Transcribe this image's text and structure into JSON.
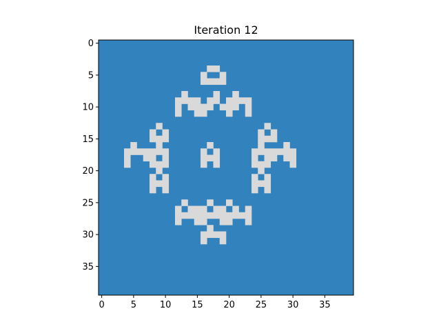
{
  "chart_data": {
    "type": "heatmap",
    "title": "Iteration 12",
    "grid_size": 40,
    "colors": {
      "dead": "#3182bd",
      "alive": "#d9d9d9"
    },
    "xlim": [
      -0.5,
      39.5
    ],
    "ylim": [
      39.5,
      -0.5
    ],
    "xticks": [
      0,
      5,
      10,
      15,
      20,
      25,
      30,
      35
    ],
    "yticks": [
      0,
      5,
      10,
      15,
      20,
      25,
      30,
      35
    ],
    "grid": false,
    "alive_cells": [
      [
        4,
        17
      ],
      [
        4,
        18
      ],
      [
        5,
        16
      ],
      [
        5,
        19
      ],
      [
        6,
        16
      ],
      [
        6,
        17
      ],
      [
        6,
        18
      ],
      [
        6,
        19
      ],
      [
        8,
        13
      ],
      [
        8,
        18
      ],
      [
        8,
        21
      ],
      [
        9,
        12
      ],
      [
        9,
        13
      ],
      [
        9,
        14
      ],
      [
        9,
        15
      ],
      [
        9,
        17
      ],
      [
        9,
        18
      ],
      [
        9,
        20
      ],
      [
        9,
        21
      ],
      [
        9,
        22
      ],
      [
        9,
        23
      ],
      [
        10,
        12
      ],
      [
        10,
        14
      ],
      [
        10,
        15
      ],
      [
        10,
        16
      ],
      [
        10,
        17
      ],
      [
        10,
        19
      ],
      [
        10,
        20
      ],
      [
        10,
        21
      ],
      [
        10,
        23
      ],
      [
        11,
        12
      ],
      [
        11,
        15
      ],
      [
        11,
        16
      ],
      [
        11,
        20
      ],
      [
        11,
        23
      ],
      [
        13,
        9
      ],
      [
        13,
        26
      ],
      [
        14,
        8
      ],
      [
        14,
        10
      ],
      [
        14,
        25
      ],
      [
        14,
        27
      ],
      [
        15,
        8
      ],
      [
        15,
        9
      ],
      [
        15,
        10
      ],
      [
        15,
        25
      ],
      [
        15,
        26
      ],
      [
        15,
        27
      ],
      [
        16,
        5
      ],
      [
        16,
        9
      ],
      [
        16,
        17
      ],
      [
        16,
        25
      ],
      [
        16,
        29
      ],
      [
        17,
        4
      ],
      [
        17,
        5
      ],
      [
        17,
        6
      ],
      [
        17,
        7
      ],
      [
        17,
        8
      ],
      [
        17,
        9
      ],
      [
        17,
        10
      ],
      [
        17,
        16
      ],
      [
        17,
        18
      ],
      [
        17,
        24
      ],
      [
        17,
        25
      ],
      [
        17,
        26
      ],
      [
        17,
        27
      ],
      [
        17,
        28
      ],
      [
        17,
        29
      ],
      [
        17,
        30
      ],
      [
        18,
        4
      ],
      [
        18,
        7
      ],
      [
        18,
        8
      ],
      [
        18,
        10
      ],
      [
        18,
        16
      ],
      [
        18,
        17
      ],
      [
        18,
        18
      ],
      [
        18,
        24
      ],
      [
        18,
        26
      ],
      [
        18,
        27
      ],
      [
        18,
        29
      ],
      [
        18,
        30
      ],
      [
        19,
        4
      ],
      [
        19,
        8
      ],
      [
        19,
        9
      ],
      [
        19,
        10
      ],
      [
        19,
        16
      ],
      [
        19,
        18
      ],
      [
        19,
        24
      ],
      [
        19,
        25
      ],
      [
        19,
        26
      ],
      [
        19,
        30
      ],
      [
        20,
        9
      ],
      [
        20,
        25
      ],
      [
        21,
        8
      ],
      [
        21,
        10
      ],
      [
        21,
        24
      ],
      [
        21,
        26
      ],
      [
        22,
        8
      ],
      [
        22,
        9
      ],
      [
        22,
        10
      ],
      [
        22,
        24
      ],
      [
        22,
        25
      ],
      [
        22,
        26
      ],
      [
        23,
        8
      ],
      [
        23,
        10
      ],
      [
        23,
        24
      ],
      [
        23,
        26
      ],
      [
        25,
        13
      ],
      [
        25,
        17
      ],
      [
        25,
        20
      ],
      [
        26,
        12
      ],
      [
        26,
        14
      ],
      [
        26,
        15
      ],
      [
        26,
        16
      ],
      [
        26,
        18
      ],
      [
        26,
        19
      ],
      [
        26,
        21
      ],
      [
        26,
        23
      ],
      [
        27,
        12
      ],
      [
        27,
        13
      ],
      [
        27,
        14
      ],
      [
        27,
        15
      ],
      [
        27,
        16
      ],
      [
        27,
        17
      ],
      [
        27,
        18
      ],
      [
        27,
        19
      ],
      [
        27,
        20
      ],
      [
        27,
        21
      ],
      [
        27,
        22
      ],
      [
        27,
        23
      ],
      [
        28,
        12
      ],
      [
        28,
        15
      ],
      [
        28,
        16
      ],
      [
        28,
        19
      ],
      [
        28,
        20
      ],
      [
        28,
        23
      ],
      [
        29,
        17
      ],
      [
        30,
        16
      ],
      [
        30,
        17
      ],
      [
        30,
        18
      ],
      [
        30,
        19
      ],
      [
        31,
        16
      ],
      [
        31,
        19
      ]
    ]
  }
}
